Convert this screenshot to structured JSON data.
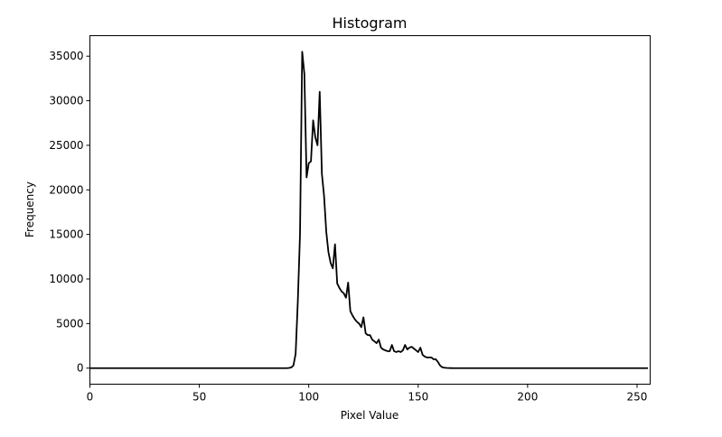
{
  "chart_data": {
    "type": "line",
    "title": "Histogram",
    "xlabel": "Pixel Value",
    "ylabel": "Frequency",
    "xlim": [
      0,
      256
    ],
    "ylim": [
      -1800,
      37300
    ],
    "xticks": [
      0,
      50,
      100,
      150,
      200,
      250
    ],
    "yticks": [
      0,
      5000,
      10000,
      15000,
      20000,
      25000,
      30000,
      35000
    ],
    "grid": false,
    "legend": "none",
    "series": [
      {
        "color": "#000000",
        "x": [
          0,
          89,
          90,
          91,
          92,
          93,
          94,
          95,
          96,
          97,
          98,
          99,
          100,
          101,
          102,
          103,
          104,
          105,
          106,
          107,
          108,
          109,
          110,
          111,
          112,
          113,
          114,
          115,
          116,
          117,
          118,
          119,
          120,
          121,
          122,
          123,
          124,
          125,
          126,
          127,
          128,
          129,
          130,
          131,
          132,
          133,
          134,
          135,
          136,
          137,
          138,
          139,
          140,
          141,
          142,
          143,
          144,
          145,
          146,
          147,
          148,
          149,
          150,
          151,
          152,
          153,
          154,
          155,
          156,
          157,
          158,
          159,
          160,
          161,
          162,
          163,
          164,
          165,
          166,
          255
        ],
        "y": [
          0,
          0,
          0,
          20,
          80,
          300,
          1600,
          7500,
          15000,
          35500,
          33000,
          21400,
          23000,
          23200,
          27800,
          25900,
          25000,
          31000,
          21800,
          19300,
          15300,
          13000,
          11800,
          11200,
          13900,
          9500,
          9000,
          8600,
          8400,
          7900,
          9600,
          6400,
          5900,
          5500,
          5200,
          5000,
          4600,
          5700,
          3900,
          3700,
          3700,
          3200,
          3000,
          2800,
          3200,
          2300,
          2100,
          2000,
          1900,
          1900,
          2600,
          1900,
          1800,
          1900,
          1800,
          2000,
          2600,
          2100,
          2300,
          2400,
          2200,
          2000,
          1800,
          2300,
          1500,
          1300,
          1200,
          1200,
          1200,
          1000,
          1000,
          700,
          300,
          100,
          50,
          20,
          10,
          5,
          0,
          0
        ]
      }
    ]
  }
}
